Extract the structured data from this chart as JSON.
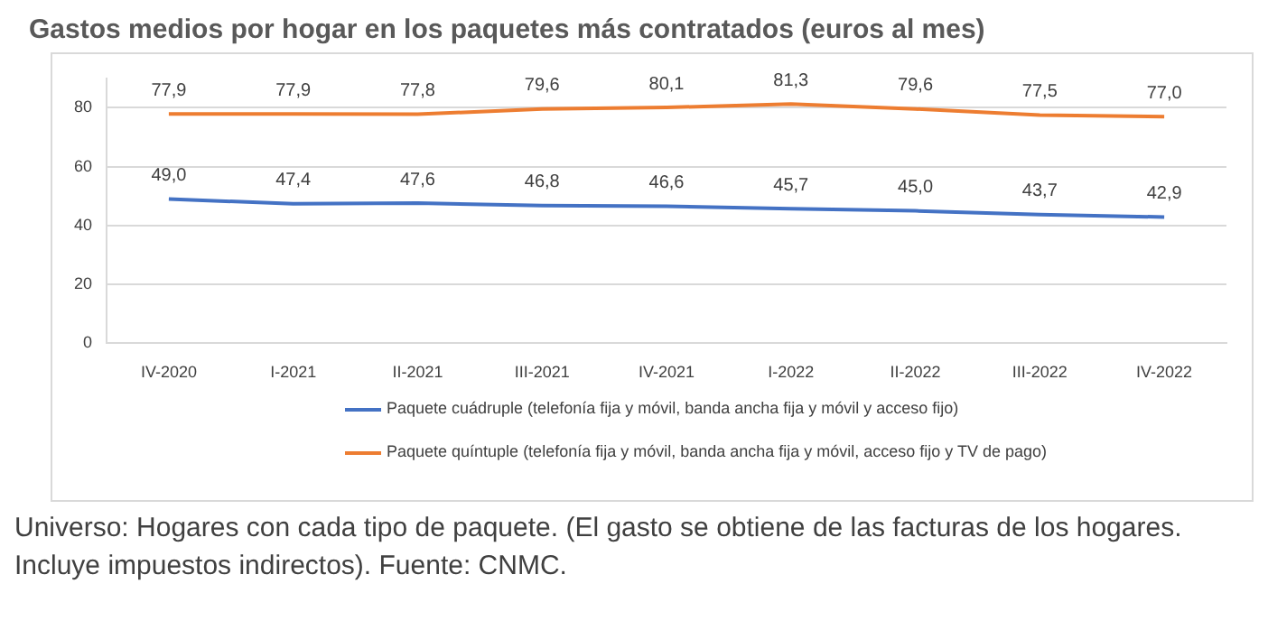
{
  "chart_data": {
    "type": "line",
    "title": "Gastos medios por hogar en los paquetes más contratados (euros al mes)",
    "categories": [
      "IV-2020",
      "I-2021",
      "II-2021",
      "III-2021",
      "IV-2021",
      "I-2022",
      "II-2022",
      "III-2022",
      "IV-2022"
    ],
    "series": [
      {
        "name": "Paquete cuádruple (telefonía fija y móvil, banda ancha fija y móvil y acceso fijo)",
        "color": "#4472c4",
        "values": [
          49.0,
          47.4,
          47.6,
          46.8,
          46.6,
          45.7,
          45.0,
          43.7,
          42.9
        ],
        "value_labels": [
          "49,0",
          "47,4",
          "47,6",
          "46,8",
          "46,6",
          "45,7",
          "45,0",
          "43,7",
          "42,9"
        ]
      },
      {
        "name": "Paquete quíntuple (telefonía fija y móvil, banda ancha fija y móvil, acceso fijo y TV de pago)",
        "color": "#ed7d31",
        "values": [
          77.9,
          77.9,
          77.8,
          79.6,
          80.1,
          81.3,
          79.6,
          77.5,
          77.0
        ],
        "value_labels": [
          "77,9",
          "77,9",
          "77,8",
          "79,6",
          "80,1",
          "81,3",
          "79,6",
          "77,5",
          "77,0"
        ]
      }
    ],
    "ylim": [
      0,
      90
    ],
    "yticks": [
      0,
      20,
      40,
      60,
      80
    ],
    "grid": "y",
    "legend": "bottom",
    "marker": "none",
    "line_style": "solid",
    "annotations": [
      "Universo: Hogares con cada tipo de paquete. (El gasto se obtiene de las facturas de los hogares. Incluye impuestos indirectos). Fuente: CNMC."
    ]
  }
}
